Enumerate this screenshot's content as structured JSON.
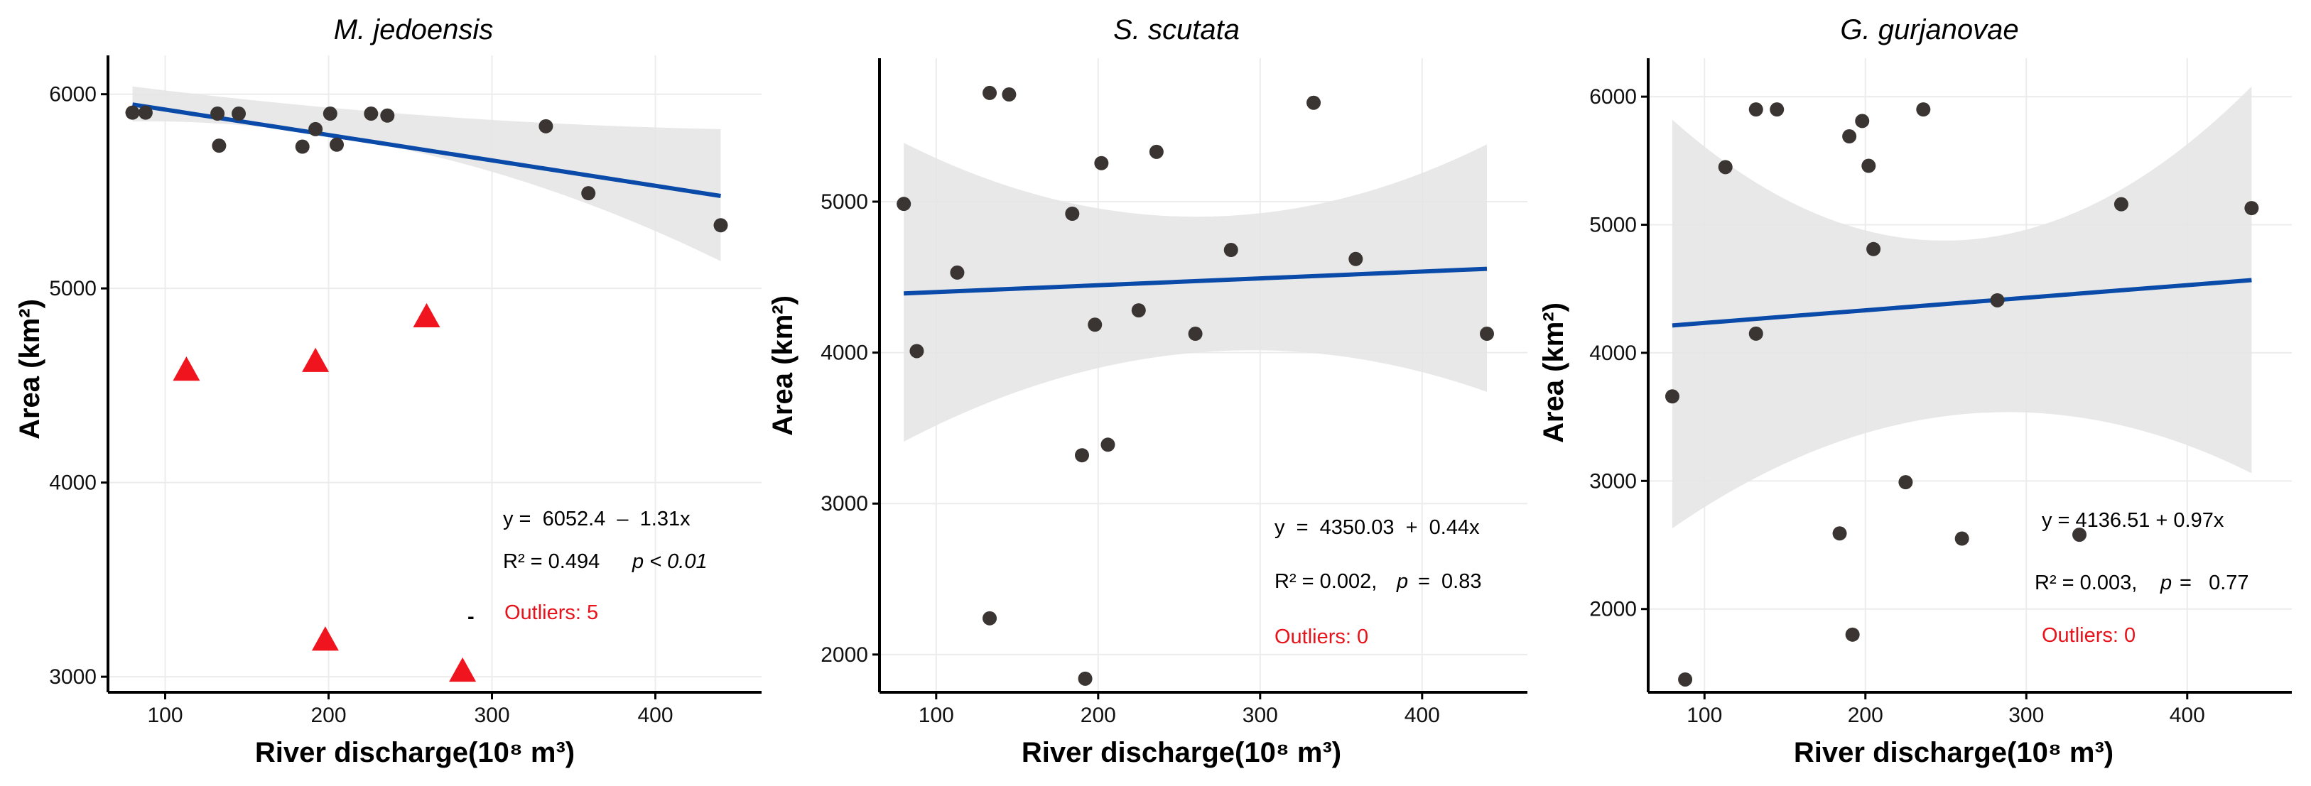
{
  "colors": {
    "point": "#3a3532",
    "outlier": "#f0141e",
    "fit_line": "#0a4aa8",
    "confidence_band": "#e6e6e6",
    "annotation_outliers": "#e8121a"
  },
  "chart_data": [
    {
      "type": "scatter",
      "title": "M. jedoensis",
      "xlabel": "River discharge(10⁸ m³)",
      "ylabel": "Area (km²)",
      "xlim": [
        65,
        465
      ],
      "ylim": [
        2920,
        6200
      ],
      "xticks": [
        100,
        200,
        300,
        400
      ],
      "yticks": [
        3000,
        4000,
        5000,
        6000
      ],
      "grid": true,
      "points": [
        {
          "x": 80,
          "y": 5905
        },
        {
          "x": 88,
          "y": 5905
        },
        {
          "x": 132,
          "y": 5900
        },
        {
          "x": 133,
          "y": 5735
        },
        {
          "x": 145,
          "y": 5900
        },
        {
          "x": 184,
          "y": 5730
        },
        {
          "x": 192,
          "y": 5820
        },
        {
          "x": 201,
          "y": 5900
        },
        {
          "x": 205,
          "y": 5740
        },
        {
          "x": 226,
          "y": 5900
        },
        {
          "x": 236,
          "y": 5890
        },
        {
          "x": 333,
          "y": 5835
        },
        {
          "x": 359,
          "y": 5490
        },
        {
          "x": 440,
          "y": 5325
        }
      ],
      "outliers": [
        {
          "x": 113,
          "y": 4580
        },
        {
          "x": 192,
          "y": 4625
        },
        {
          "x": 198,
          "y": 3190
        },
        {
          "x": 260,
          "y": 4855
        },
        {
          "x": 282,
          "y": 3030
        }
      ],
      "fit": {
        "x": [
          80,
          440
        ],
        "y": [
          5947,
          5476
        ]
      },
      "band": {
        "x": [
          80,
          260,
          440
        ],
        "upper": [
          6040,
          5890,
          5820
        ],
        "lower": [
          5860,
          5690,
          5140
        ]
      },
      "annotations": {
        "equation": "y =  6052.4  –  1.31x",
        "r2": "R² = 0.494",
        "p": "p < 0.01",
        "stray_mark": "-",
        "outliers": "Outliers: 5"
      }
    },
    {
      "type": "scatter",
      "title": "S. scutata",
      "xlabel": "River discharge(10⁸ m³)",
      "ylabel": "Area (km²)",
      "xlim": [
        65,
        465
      ],
      "ylim": [
        1750,
        5950
      ],
      "xticks": [
        100,
        200,
        300,
        400
      ],
      "yticks": [
        2000,
        3000,
        4000,
        5000
      ],
      "grid": true,
      "points": [
        {
          "x": 80,
          "y": 4985
        },
        {
          "x": 88,
          "y": 4010
        },
        {
          "x": 113,
          "y": 4530
        },
        {
          "x": 133,
          "y": 2240
        },
        {
          "x": 133,
          "y": 5720
        },
        {
          "x": 145,
          "y": 5710
        },
        {
          "x": 184,
          "y": 4920
        },
        {
          "x": 190,
          "y": 3320
        },
        {
          "x": 192,
          "y": 1840
        },
        {
          "x": 198,
          "y": 4185
        },
        {
          "x": 202,
          "y": 5255
        },
        {
          "x": 206,
          "y": 3390
        },
        {
          "x": 225,
          "y": 4280
        },
        {
          "x": 236,
          "y": 5330
        },
        {
          "x": 260,
          "y": 4125
        },
        {
          "x": 282,
          "y": 4680
        },
        {
          "x": 333,
          "y": 5655
        },
        {
          "x": 359,
          "y": 4620
        },
        {
          "x": 440,
          "y": 4125
        }
      ],
      "outliers": [],
      "fit": {
        "x": [
          80,
          440
        ],
        "y": [
          4392,
          4555
        ]
      },
      "band": {
        "x": [
          80,
          260,
          440
        ],
        "upper": [
          5390,
          4900,
          5380
        ],
        "lower": [
          3410,
          4000,
          3740
        ]
      },
      "annotations": {
        "equation": "y  =  4350.03  +  0.44x",
        "r2": "R² = 0.002,",
        "p_label": "p",
        "p_value": "=  0.83",
        "outliers": "Outliers: 0"
      }
    },
    {
      "type": "scatter",
      "title": "G. gurjanovae",
      "xlabel": "River discharge(10⁸ m³)",
      "ylabel": "Area (km²)",
      "xlim": [
        65,
        465
      ],
      "ylim": [
        1350,
        6300
      ],
      "xticks": [
        100,
        200,
        300,
        400
      ],
      "yticks": [
        2000,
        3000,
        4000,
        5000,
        6000
      ],
      "grid": true,
      "points": [
        {
          "x": 80,
          "y": 3660
        },
        {
          "x": 88,
          "y": 1450
        },
        {
          "x": 113,
          "y": 5450
        },
        {
          "x": 132,
          "y": 4150
        },
        {
          "x": 132,
          "y": 5900
        },
        {
          "x": 145,
          "y": 5900
        },
        {
          "x": 184,
          "y": 2590
        },
        {
          "x": 190,
          "y": 5690
        },
        {
          "x": 192,
          "y": 1800
        },
        {
          "x": 198,
          "y": 5810
        },
        {
          "x": 202,
          "y": 5460
        },
        {
          "x": 205,
          "y": 4810
        },
        {
          "x": 225,
          "y": 2990
        },
        {
          "x": 236,
          "y": 5900
        },
        {
          "x": 260,
          "y": 2550
        },
        {
          "x": 282,
          "y": 4410
        },
        {
          "x": 333,
          "y": 2580
        },
        {
          "x": 359,
          "y": 5160
        },
        {
          "x": 440,
          "y": 5130
        }
      ],
      "outliers": [],
      "fit": {
        "x": [
          80,
          440
        ],
        "y": [
          4214,
          4568
        ]
      },
      "band": {
        "x": [
          80,
          260,
          440
        ],
        "upper": [
          5820,
          4880,
          6080
        ],
        "lower": [
          2630,
          3520,
          3060
        ]
      },
      "annotations": {
        "equation": "y = 4136.51 + 0.97x",
        "r2": "R² = 0.003,",
        "p_label": "p",
        "p_value": "=   0.77",
        "outliers": "Outliers: 0"
      }
    }
  ]
}
